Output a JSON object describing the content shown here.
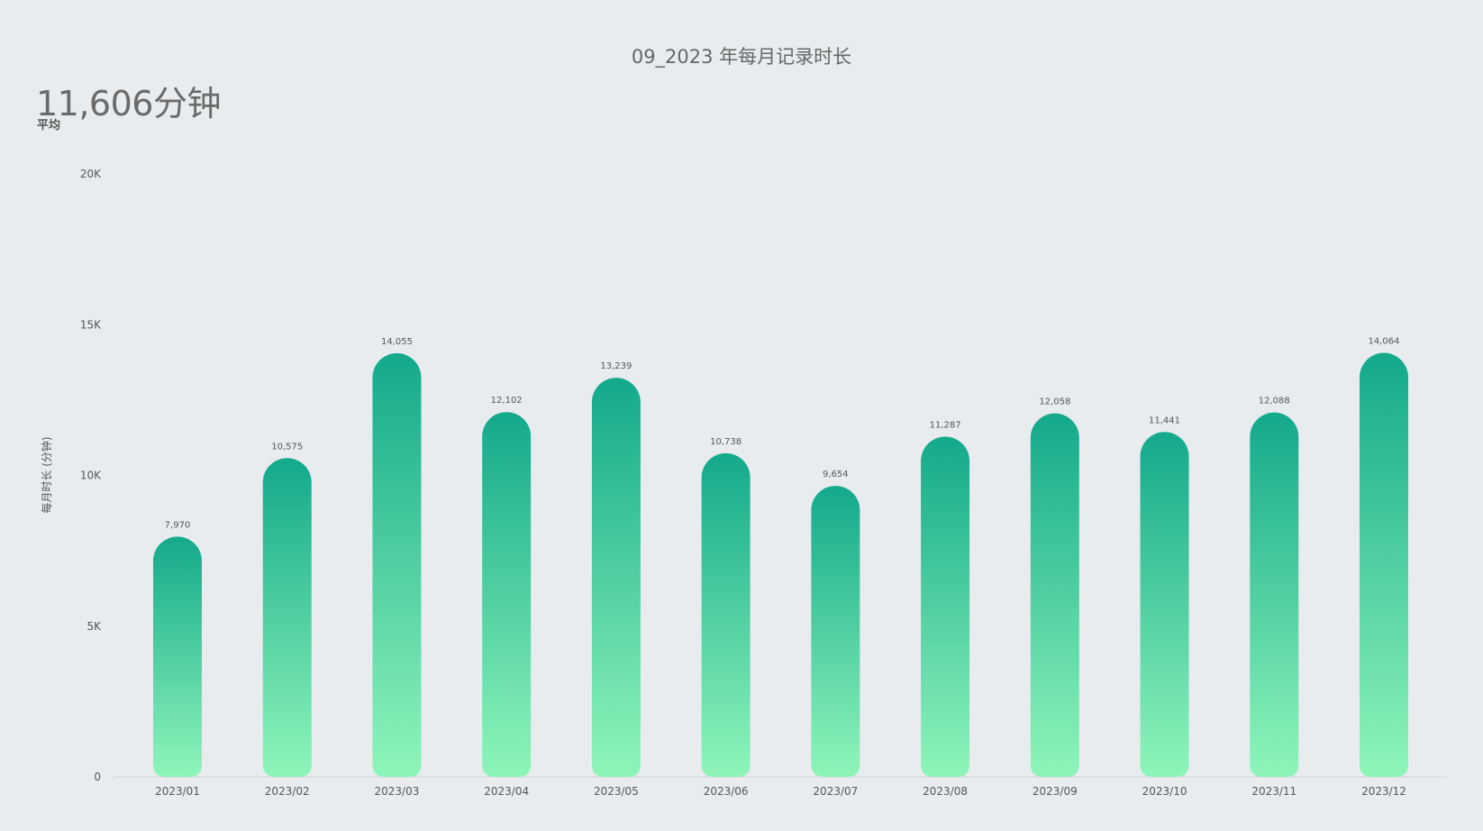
{
  "chart_data": {
    "type": "bar",
    "title": "09_2023 年每月记录时长",
    "kpi": {
      "value": "11,606分钟",
      "label": "平均"
    },
    "ylabel": "每月时长 (分钟)",
    "xlabel": "",
    "ylim": [
      0,
      20000
    ],
    "y_ticks": [
      {
        "value": 0,
        "label": "0"
      },
      {
        "value": 5000,
        "label": "5K"
      },
      {
        "value": 10000,
        "label": "10K"
      },
      {
        "value": 15000,
        "label": "15K"
      },
      {
        "value": 20000,
        "label": "20K"
      }
    ],
    "categories": [
      "2023/01",
      "2023/02",
      "2023/03",
      "2023/04",
      "2023/05",
      "2023/06",
      "2023/07",
      "2023/08",
      "2023/09",
      "2023/10",
      "2023/11",
      "2023/12"
    ],
    "values": [
      7970,
      10575,
      14055,
      12102,
      13239,
      10738,
      9654,
      11287,
      12058,
      11441,
      12088,
      14064
    ],
    "value_labels": [
      "7,970",
      "10,575",
      "14,055",
      "12,102",
      "13,239",
      "10,738",
      "9,654",
      "11,287",
      "12,058",
      "11,441",
      "12,088",
      "14,064"
    ],
    "grid": false,
    "colors": {
      "bar_top": "#13a98b",
      "bar_bottom": "#8ff5b9",
      "background": "#e8ecef",
      "baseline": "#d0d4d8"
    }
  }
}
